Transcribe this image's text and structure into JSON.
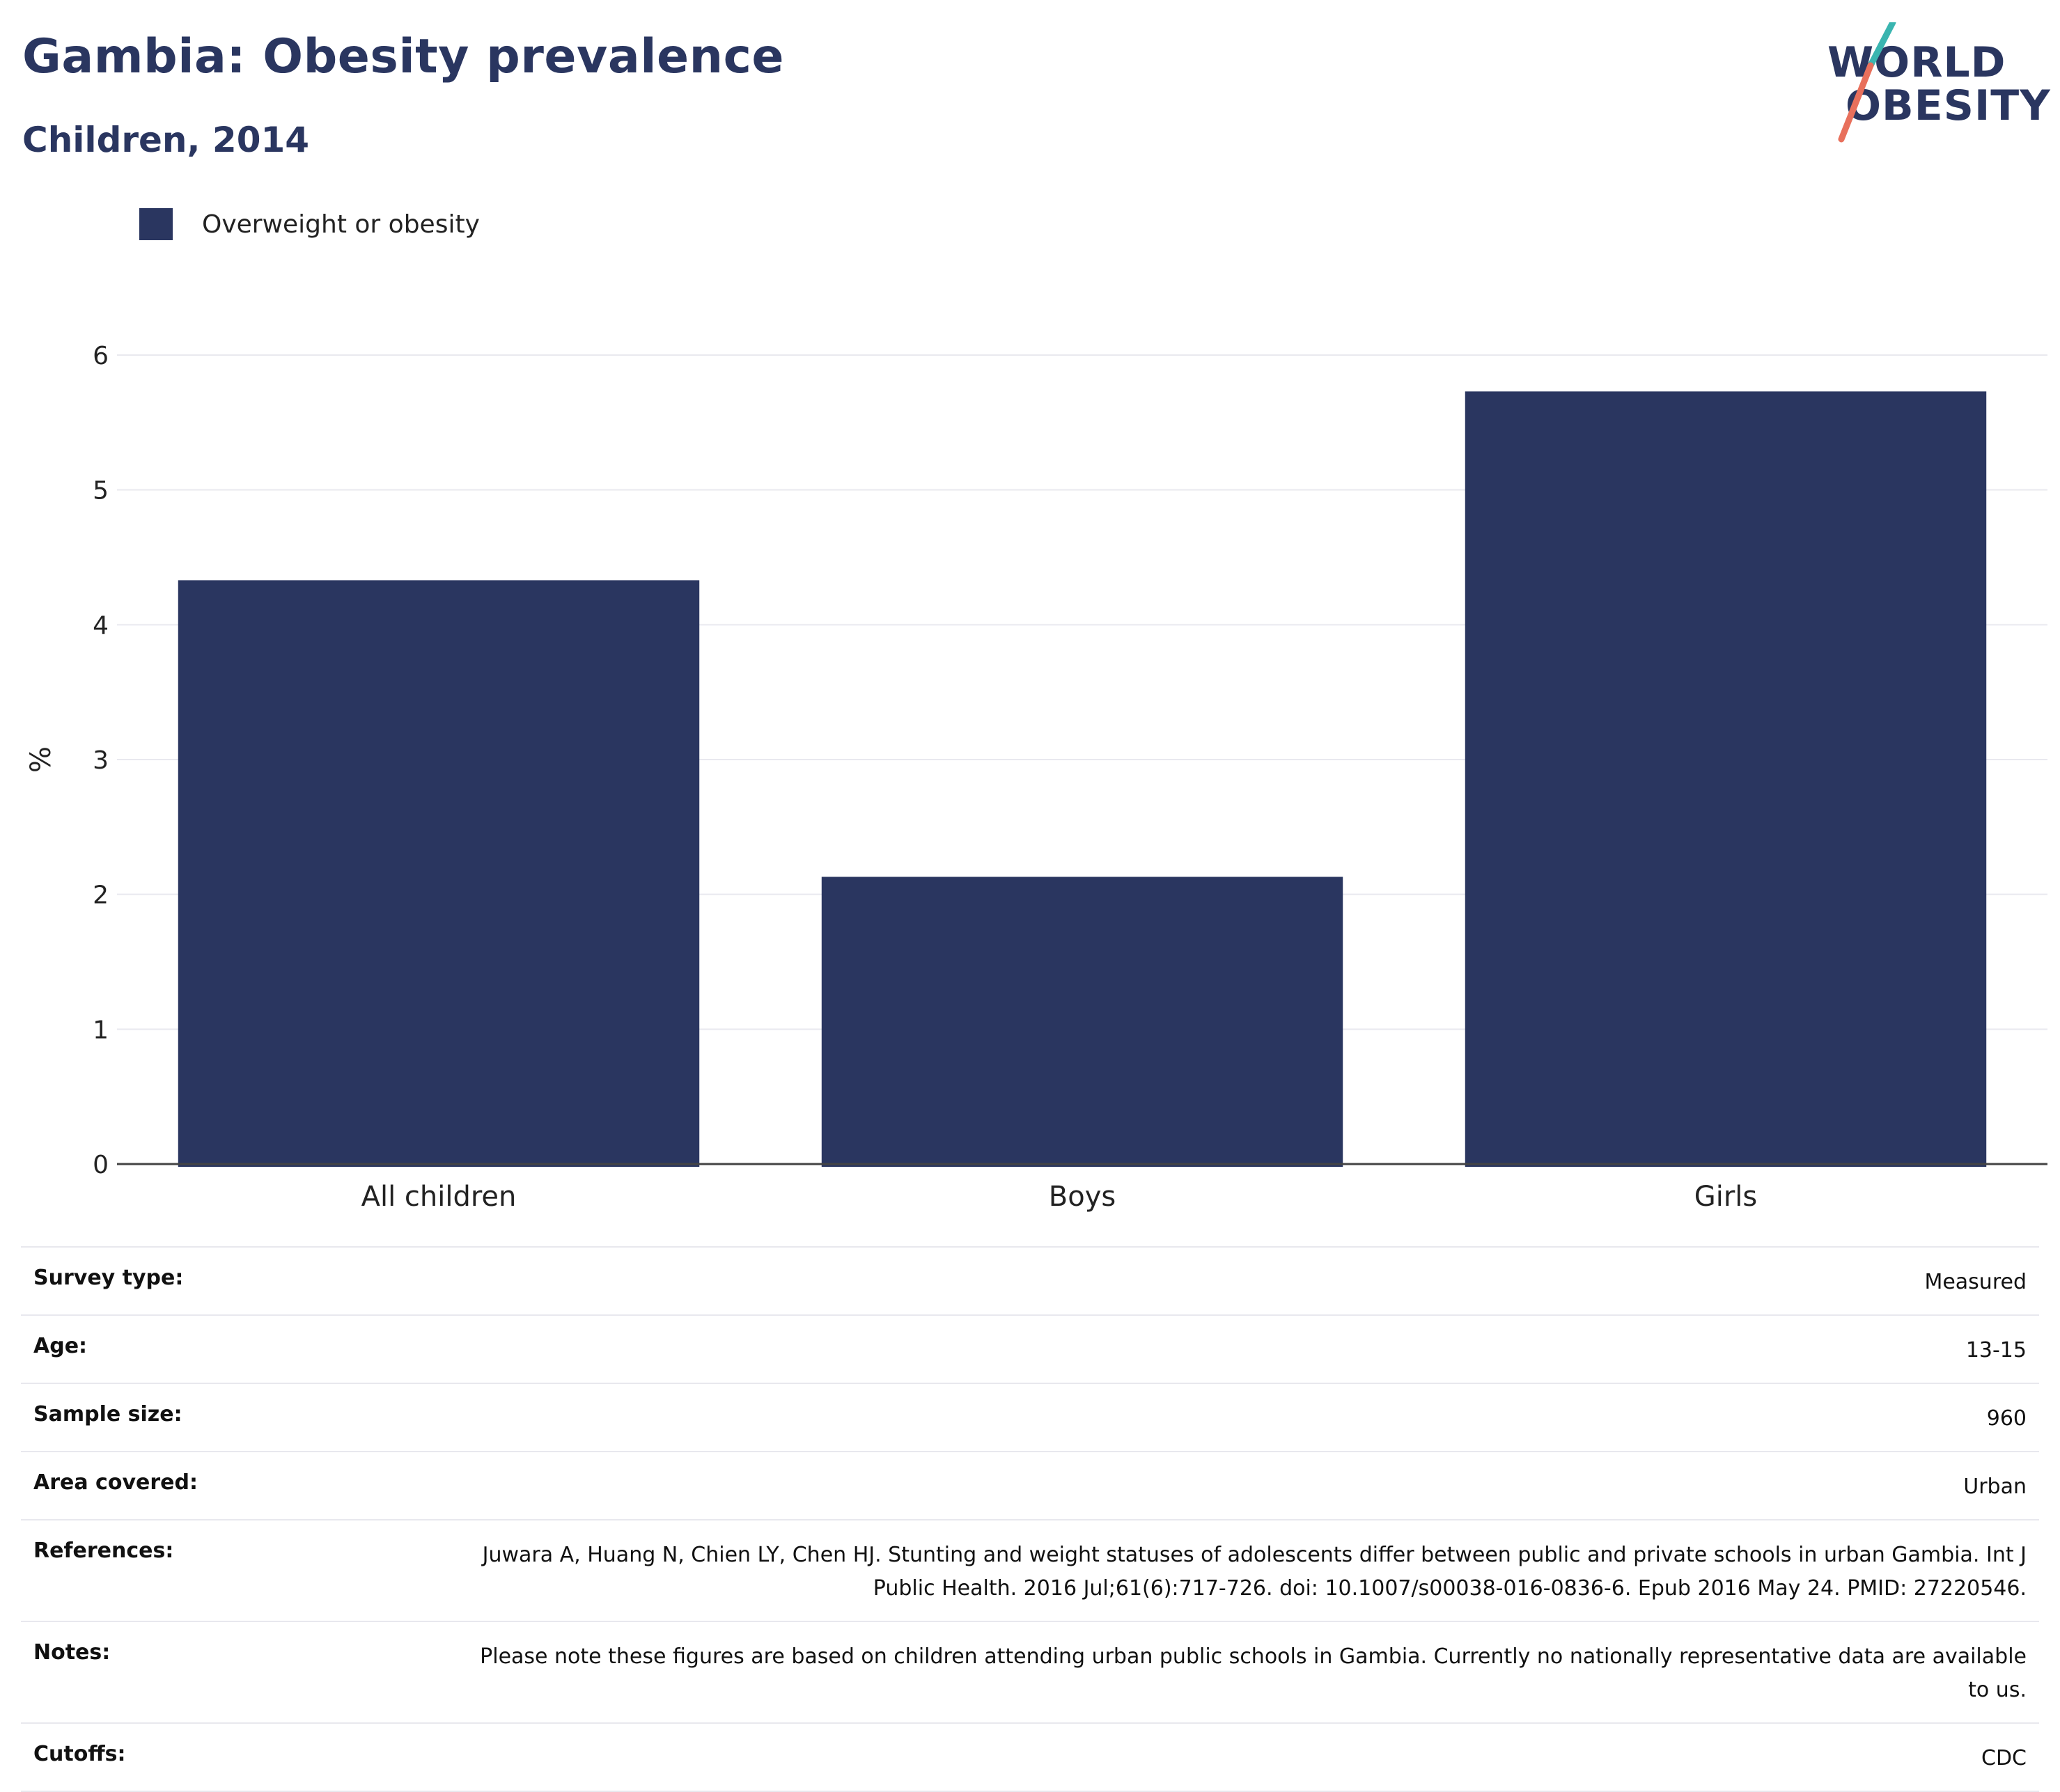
{
  "header": {
    "title": "Gambia: Obesity prevalence",
    "subtitle": "Children, 2014"
  },
  "logo": {
    "line1": "WORLD",
    "line2": "OBESITY",
    "colors": {
      "text": "#2a3660",
      "stroke_top": "#3ab5b0",
      "stroke_bottom": "#e8705c"
    }
  },
  "legend": {
    "items": [
      {
        "label": "Overweight or obesity",
        "color": "#2a3660"
      }
    ]
  },
  "chart_data": {
    "type": "bar",
    "title": "Gambia: Obesity prevalence",
    "subtitle": "Children, 2014",
    "categories": [
      "All children",
      "Boys",
      "Girls"
    ],
    "series": [
      {
        "name": "Overweight or obesity",
        "values": [
          4.33,
          2.13,
          5.73
        ],
        "color": "#2a3660"
      }
    ],
    "xlabel": "",
    "ylabel": "%",
    "ylim": [
      0,
      6
    ],
    "yticks": [
      0,
      1,
      2,
      3,
      4,
      5,
      6
    ],
    "grid": true,
    "legend_position": "top-left"
  },
  "info": {
    "rows": [
      {
        "label": "Survey type:",
        "value": "Measured"
      },
      {
        "label": "Age:",
        "value": "13-15"
      },
      {
        "label": "Sample size:",
        "value": "960"
      },
      {
        "label": "Area covered:",
        "value": "Urban"
      },
      {
        "label": "References:",
        "value": "Juwara A, Huang N, Chien LY, Chen HJ. Stunting and weight statuses of adolescents differ between public and private schools in urban Gambia. Int J Public Health. 2016 Jul;61(6):717-726. doi: 10.1007/s00038-016-0836-6. Epub 2016 May 24. PMID: 27220546."
      },
      {
        "label": "Notes:",
        "value": "Please note these figures are based on children attending urban public schools in Gambia. Currently no nationally representative data are available to us."
      },
      {
        "label": "Cutoffs:",
        "value": "CDC"
      }
    ]
  }
}
